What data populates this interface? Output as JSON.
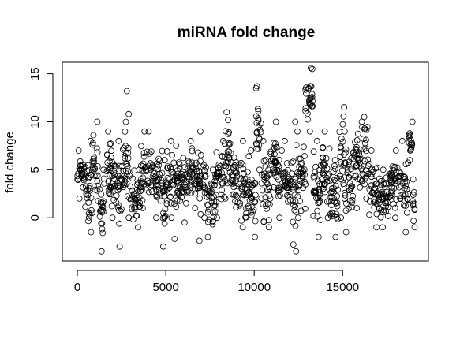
{
  "chart_data": {
    "type": "scatter",
    "title": "miRNA fold change",
    "xlabel": "",
    "ylabel": "fold change",
    "xlim": [
      -850,
      19850
    ],
    "ylim": [
      -4.5,
      16.2
    ],
    "xticks": [
      0,
      5000,
      10000,
      15000
    ],
    "xtick_labels": [
      "0",
      "5000",
      "10000",
      "15000"
    ],
    "yticks": [
      0,
      5,
      10,
      15
    ],
    "ytick_labels": [
      "0",
      "5",
      "10",
      "15"
    ],
    "grid": false,
    "legend": "none",
    "marker": "open circle",
    "n_points_approx": 19000,
    "segments": [
      {
        "x": [
          0,
          400
        ],
        "y_range": [
          2,
          7
        ]
      },
      {
        "x": [
          400,
          800
        ],
        "y_range": [
          -1.5,
          8
        ]
      },
      {
        "x": [
          800,
          1200
        ],
        "y_range": [
          0.5,
          10
        ]
      },
      {
        "x": [
          1200,
          1500
        ],
        "y_range": [
          -3.5,
          5
        ]
      },
      {
        "x": [
          1500,
          2100
        ],
        "y_range": [
          0,
          9
        ]
      },
      {
        "x": [
          2100,
          2500
        ],
        "y_range": [
          -3,
          8
        ]
      },
      {
        "x": [
          2500,
          3000
        ],
        "y_range": [
          0,
          10
        ]
      },
      {
        "x": [
          3000,
          3600
        ],
        "y_range": [
          -1,
          5
        ]
      },
      {
        "x": [
          3600,
          4000
        ],
        "y_range": [
          1,
          9
        ]
      },
      {
        "x": [
          4000,
          4800
        ],
        "y_range": [
          0,
          9
        ]
      },
      {
        "x": [
          4800,
          5000
        ],
        "y_range": [
          -3,
          6
        ]
      },
      {
        "x": [
          5000,
          5500
        ],
        "y_range": [
          0,
          8
        ]
      },
      {
        "x": [
          5500,
          6200
        ],
        "y_range": [
          -0.5,
          7.5
        ]
      },
      {
        "x": [
          6200,
          6800
        ],
        "y_range": [
          1,
          8
        ]
      },
      {
        "x": [
          6800,
          7300
        ],
        "y_range": [
          0,
          9
        ]
      },
      {
        "x": [
          7300,
          7800
        ],
        "y_range": [
          -2,
          5
        ]
      },
      {
        "x": [
          7800,
          8300
        ],
        "y_range": [
          0,
          8
        ]
      },
      {
        "x": [
          8300,
          8700
        ],
        "y_range": [
          2,
          11
        ]
      },
      {
        "x": [
          8700,
          9500
        ],
        "y_range": [
          -1,
          8
        ]
      },
      {
        "x": [
          9500,
          10100
        ],
        "y_range": [
          -2,
          7
        ]
      },
      {
        "x": [
          10100,
          10400
        ],
        "y_range": [
          5,
          13.5
        ]
      },
      {
        "x": [
          10400,
          10900
        ],
        "y_range": [
          -1,
          8
        ]
      },
      {
        "x": [
          10900,
          11300
        ],
        "y_range": [
          2,
          10
        ]
      },
      {
        "x": [
          11300,
          12000
        ],
        "y_range": [
          0,
          8
        ]
      },
      {
        "x": [
          12000,
          12400
        ],
        "y_range": [
          -3.5,
          10
        ]
      },
      {
        "x": [
          12400,
          12900
        ],
        "y_range": [
          0,
          9
        ]
      },
      {
        "x": [
          12900,
          13300
        ],
        "y_range": [
          9,
          15.5
        ]
      },
      {
        "x": [
          13300,
          13800
        ],
        "y_range": [
          -2,
          8
        ]
      },
      {
        "x": [
          13800,
          14300
        ],
        "y_range": [
          0,
          9
        ]
      },
      {
        "x": [
          14300,
          14800
        ],
        "y_range": [
          -2,
          6
        ]
      },
      {
        "x": [
          14800,
          15100
        ],
        "y_range": [
          0,
          11.5
        ]
      },
      {
        "x": [
          15100,
          15600
        ],
        "y_range": [
          -1.5,
          9
        ]
      },
      {
        "x": [
          15600,
          16100
        ],
        "y_range": [
          1,
          10
        ]
      },
      {
        "x": [
          16100,
          16500
        ],
        "y_range": [
          2,
          10.5
        ]
      },
      {
        "x": [
          16500,
          17000
        ],
        "y_range": [
          -1,
          7
        ]
      },
      {
        "x": [
          17000,
          17600
        ],
        "y_range": [
          -1,
          5
        ]
      },
      {
        "x": [
          17600,
          18200
        ],
        "y_range": [
          0,
          7
        ]
      },
      {
        "x": [
          18200,
          18700
        ],
        "y_range": [
          -1.5,
          8
        ]
      },
      {
        "x": [
          18700,
          18950
        ],
        "y_range": [
          6,
          10
        ]
      },
      {
        "x": [
          18950,
          19100
        ],
        "y_range": [
          -1,
          4
        ]
      }
    ],
    "outliers": [
      {
        "x": 2800,
        "y": 13.2
      },
      {
        "x": 2900,
        "y": 10.8
      },
      {
        "x": 5500,
        "y": -2.2
      },
      {
        "x": 6900,
        "y": -2.4
      },
      {
        "x": 10150,
        "y": 13.7
      },
      {
        "x": 13200,
        "y": 15.6
      }
    ]
  }
}
